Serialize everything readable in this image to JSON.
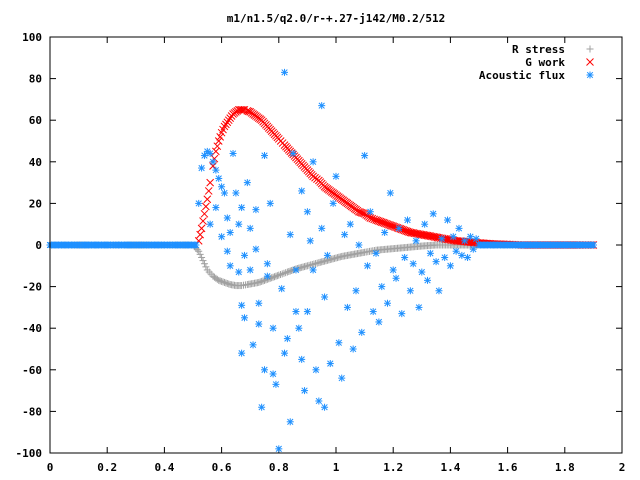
{
  "chart_data": {
    "type": "scatter",
    "title": "m1/n1.5/q2.0/r-+.27-j142/M0.2/512",
    "xlabel": "",
    "ylabel": "",
    "xlim": [
      0,
      2
    ],
    "ylim": [
      -100,
      100
    ],
    "x_ticks": [
      "0",
      "0.2",
      "0.4",
      "0.6",
      "0.8",
      "1",
      "1.2",
      "1.4",
      "1.6",
      "1.8",
      "2"
    ],
    "y_ticks": [
      "100",
      "80",
      "60",
      "40",
      "20",
      "0",
      "-20",
      "-40",
      "-60",
      "-80",
      "-100"
    ],
    "grid": false,
    "legend_position": "top-right",
    "series": [
      {
        "name": "R stress",
        "marker": "plus",
        "color": "#a0a0a0",
        "points": [
          [
            0.0,
            0
          ],
          [
            0.05,
            0
          ],
          [
            0.1,
            0
          ],
          [
            0.15,
            0
          ],
          [
            0.2,
            0
          ],
          [
            0.25,
            0
          ],
          [
            0.3,
            0
          ],
          [
            0.35,
            0
          ],
          [
            0.4,
            0
          ],
          [
            0.45,
            0
          ],
          [
            0.5,
            0
          ],
          [
            0.52,
            -3
          ],
          [
            0.53,
            -6
          ],
          [
            0.54,
            -9
          ],
          [
            0.55,
            -12
          ],
          [
            0.57,
            -15
          ],
          [
            0.59,
            -17
          ],
          [
            0.61,
            -18
          ],
          [
            0.63,
            -19
          ],
          [
            0.65,
            -19.5
          ],
          [
            0.67,
            -19.5
          ],
          [
            0.69,
            -19
          ],
          [
            0.71,
            -18.5
          ],
          [
            0.73,
            -18
          ],
          [
            0.75,
            -17
          ],
          [
            0.77,
            -16
          ],
          [
            0.8,
            -14.5
          ],
          [
            0.83,
            -13
          ],
          [
            0.86,
            -11.5
          ],
          [
            0.9,
            -10
          ],
          [
            0.94,
            -8.5
          ],
          [
            0.98,
            -7
          ],
          [
            1.02,
            -5.5
          ],
          [
            1.06,
            -4.5
          ],
          [
            1.1,
            -3.5
          ],
          [
            1.14,
            -2.5
          ],
          [
            1.18,
            -2
          ],
          [
            1.22,
            -1.5
          ],
          [
            1.26,
            -1
          ],
          [
            1.3,
            -0.5
          ],
          [
            1.35,
            0
          ],
          [
            1.4,
            0
          ],
          [
            1.45,
            0
          ],
          [
            1.5,
            0
          ],
          [
            1.55,
            0
          ],
          [
            1.6,
            0
          ],
          [
            1.65,
            0
          ],
          [
            1.7,
            0
          ],
          [
            1.75,
            0
          ],
          [
            1.8,
            0
          ],
          [
            1.85,
            0
          ],
          [
            1.9,
            0
          ]
        ]
      },
      {
        "name": "G work",
        "marker": "cross",
        "color": "#ff0000",
        "points": [
          [
            0.52,
            2
          ],
          [
            0.53,
            8
          ],
          [
            0.54,
            15
          ],
          [
            0.55,
            22
          ],
          [
            0.56,
            30
          ],
          [
            0.57,
            38
          ],
          [
            0.58,
            45
          ],
          [
            0.59,
            50
          ],
          [
            0.6,
            54
          ],
          [
            0.61,
            57
          ],
          [
            0.62,
            59
          ],
          [
            0.63,
            61
          ],
          [
            0.64,
            63
          ],
          [
            0.65,
            64
          ],
          [
            0.66,
            65
          ],
          [
            0.67,
            65
          ],
          [
            0.68,
            65
          ],
          [
            0.69,
            64.5
          ],
          [
            0.7,
            64
          ],
          [
            0.71,
            63
          ],
          [
            0.72,
            62
          ],
          [
            0.74,
            60
          ],
          [
            0.76,
            57
          ],
          [
            0.78,
            54
          ],
          [
            0.8,
            51
          ],
          [
            0.82,
            48
          ],
          [
            0.84,
            45
          ],
          [
            0.86,
            42
          ],
          [
            0.88,
            39
          ],
          [
            0.9,
            36
          ],
          [
            0.92,
            33
          ],
          [
            0.94,
            31
          ],
          [
            0.96,
            28
          ],
          [
            0.98,
            26
          ],
          [
            1.0,
            24
          ],
          [
            1.02,
            22
          ],
          [
            1.04,
            20
          ],
          [
            1.06,
            18
          ],
          [
            1.08,
            16
          ],
          [
            1.1,
            15
          ],
          [
            1.12,
            13
          ],
          [
            1.14,
            12
          ],
          [
            1.16,
            11
          ],
          [
            1.18,
            10
          ],
          [
            1.2,
            9
          ],
          [
            1.22,
            8
          ],
          [
            1.24,
            7
          ],
          [
            1.26,
            6
          ],
          [
            1.28,
            5.5
          ],
          [
            1.3,
            5
          ],
          [
            1.32,
            4.5
          ],
          [
            1.34,
            4
          ],
          [
            1.36,
            3.5
          ],
          [
            1.38,
            3
          ],
          [
            1.4,
            2.5
          ],
          [
            1.42,
            2
          ],
          [
            1.44,
            1.8
          ],
          [
            1.46,
            1.5
          ],
          [
            1.48,
            1.2
          ],
          [
            1.5,
            1
          ],
          [
            1.55,
            0.5
          ],
          [
            1.6,
            0.3
          ],
          [
            1.65,
            0
          ],
          [
            1.7,
            0
          ],
          [
            1.75,
            0
          ],
          [
            1.8,
            0
          ],
          [
            1.85,
            0
          ],
          [
            1.9,
            0
          ]
        ]
      },
      {
        "name": "Acoustic flux",
        "marker": "star",
        "color": "#1e90ff",
        "points": [
          [
            0.0,
            0
          ],
          [
            0.04,
            0
          ],
          [
            0.08,
            0
          ],
          [
            0.12,
            0
          ],
          [
            0.16,
            0
          ],
          [
            0.2,
            0
          ],
          [
            0.24,
            0
          ],
          [
            0.28,
            0
          ],
          [
            0.32,
            0
          ],
          [
            0.36,
            0
          ],
          [
            0.4,
            0
          ],
          [
            0.44,
            0
          ],
          [
            0.48,
            0
          ],
          [
            0.51,
            0
          ],
          [
            0.52,
            20
          ],
          [
            0.53,
            37
          ],
          [
            0.54,
            43
          ],
          [
            0.55,
            45
          ],
          [
            0.56,
            44
          ],
          [
            0.57,
            40
          ],
          [
            0.58,
            36
          ],
          [
            0.59,
            32
          ],
          [
            0.6,
            28
          ],
          [
            0.61,
            25
          ],
          [
            0.56,
            10
          ],
          [
            0.58,
            18
          ],
          [
            0.6,
            4
          ],
          [
            0.62,
            13
          ],
          [
            0.62,
            -3
          ],
          [
            0.63,
            6
          ],
          [
            0.63,
            -10
          ],
          [
            0.64,
            44
          ],
          [
            0.65,
            25
          ],
          [
            0.66,
            10
          ],
          [
            0.66,
            -13
          ],
          [
            0.67,
            18
          ],
          [
            0.67,
            -29
          ],
          [
            0.67,
            -52
          ],
          [
            0.68,
            -5
          ],
          [
            0.68,
            -35
          ],
          [
            0.69,
            30
          ],
          [
            0.7,
            8
          ],
          [
            0.7,
            -12
          ],
          [
            0.71,
            -48
          ],
          [
            0.72,
            17
          ],
          [
            0.72,
            -2
          ],
          [
            0.73,
            -28
          ],
          [
            0.73,
            -38
          ],
          [
            0.74,
            -78
          ],
          [
            0.75,
            43
          ],
          [
            0.75,
            -60
          ],
          [
            0.76,
            -15
          ],
          [
            0.76,
            -9
          ],
          [
            0.77,
            20
          ],
          [
            0.78,
            -40
          ],
          [
            0.78,
            -62
          ],
          [
            0.79,
            -67
          ],
          [
            0.8,
            -98
          ],
          [
            0.81,
            -21
          ],
          [
            0.82,
            -52
          ],
          [
            0.82,
            83
          ],
          [
            0.83,
            -45
          ],
          [
            0.84,
            5
          ],
          [
            0.84,
            -85
          ],
          [
            0.85,
            44
          ],
          [
            0.86,
            -12
          ],
          [
            0.86,
            -32
          ],
          [
            0.87,
            -40
          ],
          [
            0.88,
            26
          ],
          [
            0.88,
            -55
          ],
          [
            0.89,
            -70
          ],
          [
            0.9,
            16
          ],
          [
            0.9,
            -32
          ],
          [
            0.91,
            2
          ],
          [
            0.92,
            -12
          ],
          [
            0.92,
            40
          ],
          [
            0.93,
            -60
          ],
          [
            0.94,
            -75
          ],
          [
            0.95,
            67
          ],
          [
            0.95,
            8
          ],
          [
            0.96,
            -25
          ],
          [
            0.96,
            -78
          ],
          [
            0.97,
            -5
          ],
          [
            0.98,
            -57
          ],
          [
            0.99,
            20
          ],
          [
            1.0,
            33
          ],
          [
            1.01,
            -47
          ],
          [
            1.02,
            -64
          ],
          [
            1.03,
            5
          ],
          [
            1.04,
            -30
          ],
          [
            1.05,
            10
          ],
          [
            1.06,
            -50
          ],
          [
            1.07,
            -22
          ],
          [
            1.08,
            0
          ],
          [
            1.09,
            -42
          ],
          [
            1.1,
            43
          ],
          [
            1.11,
            -10
          ],
          [
            1.12,
            16
          ],
          [
            1.13,
            -32
          ],
          [
            1.14,
            -4
          ],
          [
            1.15,
            -37
          ],
          [
            1.16,
            -20
          ],
          [
            1.17,
            6
          ],
          [
            1.18,
            -28
          ],
          [
            1.19,
            25
          ],
          [
            1.2,
            -12
          ],
          [
            1.21,
            -16
          ],
          [
            1.22,
            8
          ],
          [
            1.23,
            -33
          ],
          [
            1.24,
            -6
          ],
          [
            1.25,
            12
          ],
          [
            1.26,
            -22
          ],
          [
            1.27,
            -9
          ],
          [
            1.28,
            2
          ],
          [
            1.29,
            -30
          ],
          [
            1.3,
            -13
          ],
          [
            1.31,
            10
          ],
          [
            1.32,
            -17
          ],
          [
            1.33,
            -4
          ],
          [
            1.34,
            15
          ],
          [
            1.35,
            -8
          ],
          [
            1.36,
            -22
          ],
          [
            1.37,
            3
          ],
          [
            1.38,
            -6
          ],
          [
            1.39,
            12
          ],
          [
            1.4,
            -10
          ],
          [
            1.41,
            4
          ],
          [
            1.42,
            -3
          ],
          [
            1.43,
            8
          ],
          [
            1.44,
            -5
          ],
          [
            1.45,
            2
          ],
          [
            1.46,
            -6
          ],
          [
            1.47,
            4
          ],
          [
            1.48,
            -2
          ],
          [
            1.49,
            3
          ],
          [
            1.5,
            0
          ],
          [
            1.55,
            0
          ],
          [
            1.6,
            0
          ],
          [
            1.65,
            0
          ],
          [
            1.7,
            0
          ],
          [
            1.75,
            0
          ],
          [
            1.8,
            0
          ],
          [
            1.85,
            0
          ],
          [
            1.9,
            0
          ]
        ]
      }
    ]
  }
}
